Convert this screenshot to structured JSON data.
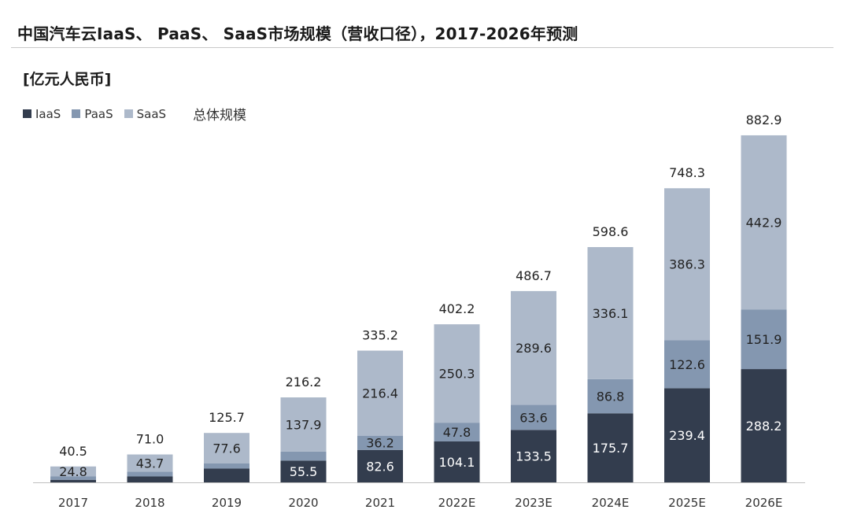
{
  "header": {
    "title": "中国汽车云IaaS、 PaaS、 SaaS市场规模（营收口径），2017-2026年预测",
    "unit": "[亿元人民币]"
  },
  "legend": {
    "iaas": "IaaS",
    "paas": "PaaS",
    "saas": "SaaS",
    "total": "总体规模"
  },
  "chart_data": {
    "type": "bar",
    "stacked": true,
    "title": "中国汽车云IaaS、 PaaS、 SaaS市场规模（营收口径），2017-2026年预测",
    "ylabel": "[亿元人民币]",
    "ylim": [
      0,
      900
    ],
    "grid": false,
    "legend_position": "top-left",
    "categories": [
      "2017",
      "2018",
      "2019",
      "2020",
      "2021",
      "2022E",
      "2023E",
      "2024E",
      "2025E",
      "2026E"
    ],
    "series": [
      {
        "name": "IaaS",
        "color": "#333d4e",
        "values": [
          6.5,
          15.0,
          35.0,
          55.5,
          82.6,
          104.1,
          133.5,
          175.7,
          239.4,
          288.2
        ],
        "labels": [
          "",
          "",
          "",
          "55.5",
          "82.6",
          "104.1",
          "133.5",
          "175.7",
          "239.4",
          "288.2"
        ]
      },
      {
        "name": "PaaS",
        "color": "#8497b0",
        "values": [
          9.2,
          12.3,
          13.1,
          22.8,
          36.2,
          47.8,
          63.6,
          86.8,
          122.6,
          151.9
        ],
        "labels": [
          "",
          "",
          "",
          "",
          "36.2",
          "47.8",
          "63.6",
          "86.8",
          "122.6",
          "151.9"
        ]
      },
      {
        "name": "SaaS",
        "color": "#adb9ca",
        "values": [
          24.8,
          43.7,
          77.6,
          137.9,
          216.4,
          250.3,
          289.6,
          336.1,
          386.3,
          442.9
        ],
        "labels": [
          "24.8",
          "43.7",
          "77.6",
          "137.9",
          "216.4",
          "250.3",
          "289.6",
          "336.1",
          "386.3",
          "442.9"
        ]
      }
    ],
    "totals": [
      "40.5",
      "71.0",
      "125.7",
      "216.2",
      "335.2",
      "402.2",
      "486.7",
      "598.6",
      "748.3",
      "882.9"
    ]
  }
}
